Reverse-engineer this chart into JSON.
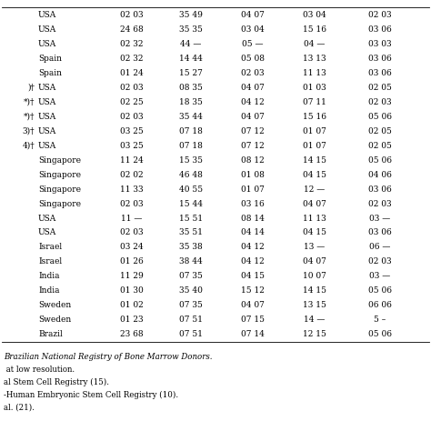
{
  "rows": [
    [
      "USA",
      "02 03",
      "35 49",
      "04 07",
      "03 04",
      "02 03"
    ],
    [
      "USA",
      "24 68",
      "35 35",
      "03 04",
      "15 16",
      "03 06"
    ],
    [
      "USA",
      "02 32",
      "44 —",
      "05 —",
      "04 —",
      "03 03"
    ],
    [
      "Spain",
      "02 32",
      "14 44",
      "05 08",
      "13 13",
      "03 06"
    ],
    [
      "Spain",
      "01 24",
      "15 27",
      "02 03",
      "11 13",
      "03 06"
    ],
    [
      "USA",
      "02 03",
      "08 35",
      "04 07",
      "01 03",
      "02 05"
    ],
    [
      "USA",
      "02 25",
      "18 35",
      "04 12",
      "07 11",
      "02 03"
    ],
    [
      "USA",
      "02 03",
      "35 44",
      "04 07",
      "15 16",
      "05 06"
    ],
    [
      "USA",
      "03 25",
      "07 18",
      "07 12",
      "01 07",
      "02 05"
    ],
    [
      "USA",
      "03 25",
      "07 18",
      "07 12",
      "01 07",
      "02 05"
    ],
    [
      "Singapore",
      "11 24",
      "15 35",
      "08 12",
      "14 15",
      "05 06"
    ],
    [
      "Singapore",
      "02 02",
      "46 48",
      "01 08",
      "04 15",
      "04 06"
    ],
    [
      "Singapore",
      "11 33",
      "40 55",
      "01 07",
      "12 —",
      "03 06"
    ],
    [
      "Singapore",
      "02 03",
      "15 44",
      "03 16",
      "04 07",
      "02 03"
    ],
    [
      "USA",
      "11 —",
      "15 51",
      "08 14",
      "11 13",
      "03 —"
    ],
    [
      "USA",
      "02 03",
      "35 51",
      "04 14",
      "04 15",
      "03 06"
    ],
    [
      "Israel",
      "03 24",
      "35 38",
      "04 12",
      "13 —",
      "06 —"
    ],
    [
      "Israel",
      "01 26",
      "38 44",
      "04 12",
      "04 07",
      "02 03"
    ],
    [
      "India",
      "11 29",
      "07 35",
      "04 15",
      "10 07",
      "03 —"
    ],
    [
      "India",
      "01 30",
      "35 40",
      "15 12",
      "14 15",
      "05 06"
    ],
    [
      "Sweden",
      "01 02",
      "07 35",
      "04 07",
      "13 15",
      "06 06"
    ],
    [
      "Sweden",
      "01 23",
      "07 51",
      "07 15",
      "14 —",
      "5 –"
    ],
    [
      "Brazil",
      "23 68",
      "07 51",
      "07 14",
      "12 15",
      "05 06"
    ]
  ],
  "left_labels": [
    "",
    "",
    "",
    "",
    "",
    ")†",
    "*)†",
    "*)†",
    "3)†",
    "4)†",
    "",
    "",
    "",
    "",
    "",
    "",
    "",
    "",
    "",
    "",
    "",
    "",
    ""
  ],
  "footnotes": [
    "Brazilian National Registry of Bone Marrow Donors.",
    " at low resolution.",
    "al Stem Cell Registry (15).",
    "-Human Embryonic Stem Cell Registry (10).",
    "al. (21)."
  ],
  "background_color": "#ffffff",
  "text_color": "#000000",
  "font_size": 6.5,
  "footnote_font_size": 6.2,
  "line_width": 0.6
}
